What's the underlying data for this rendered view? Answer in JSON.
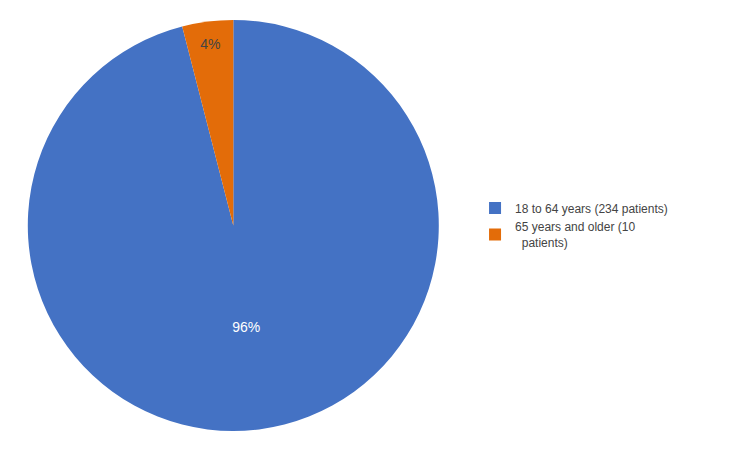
{
  "chart_data": {
    "type": "pie",
    "categories": [
      "18 to 64 years (234 patients)",
      "65 years and older (10\n  patients)"
    ],
    "values": [
      96,
      4
    ],
    "value_labels": [
      "96%",
      "4%"
    ],
    "colors": [
      "#4472C4",
      "#E36C09"
    ],
    "data_labels": true,
    "legend": "right"
  }
}
